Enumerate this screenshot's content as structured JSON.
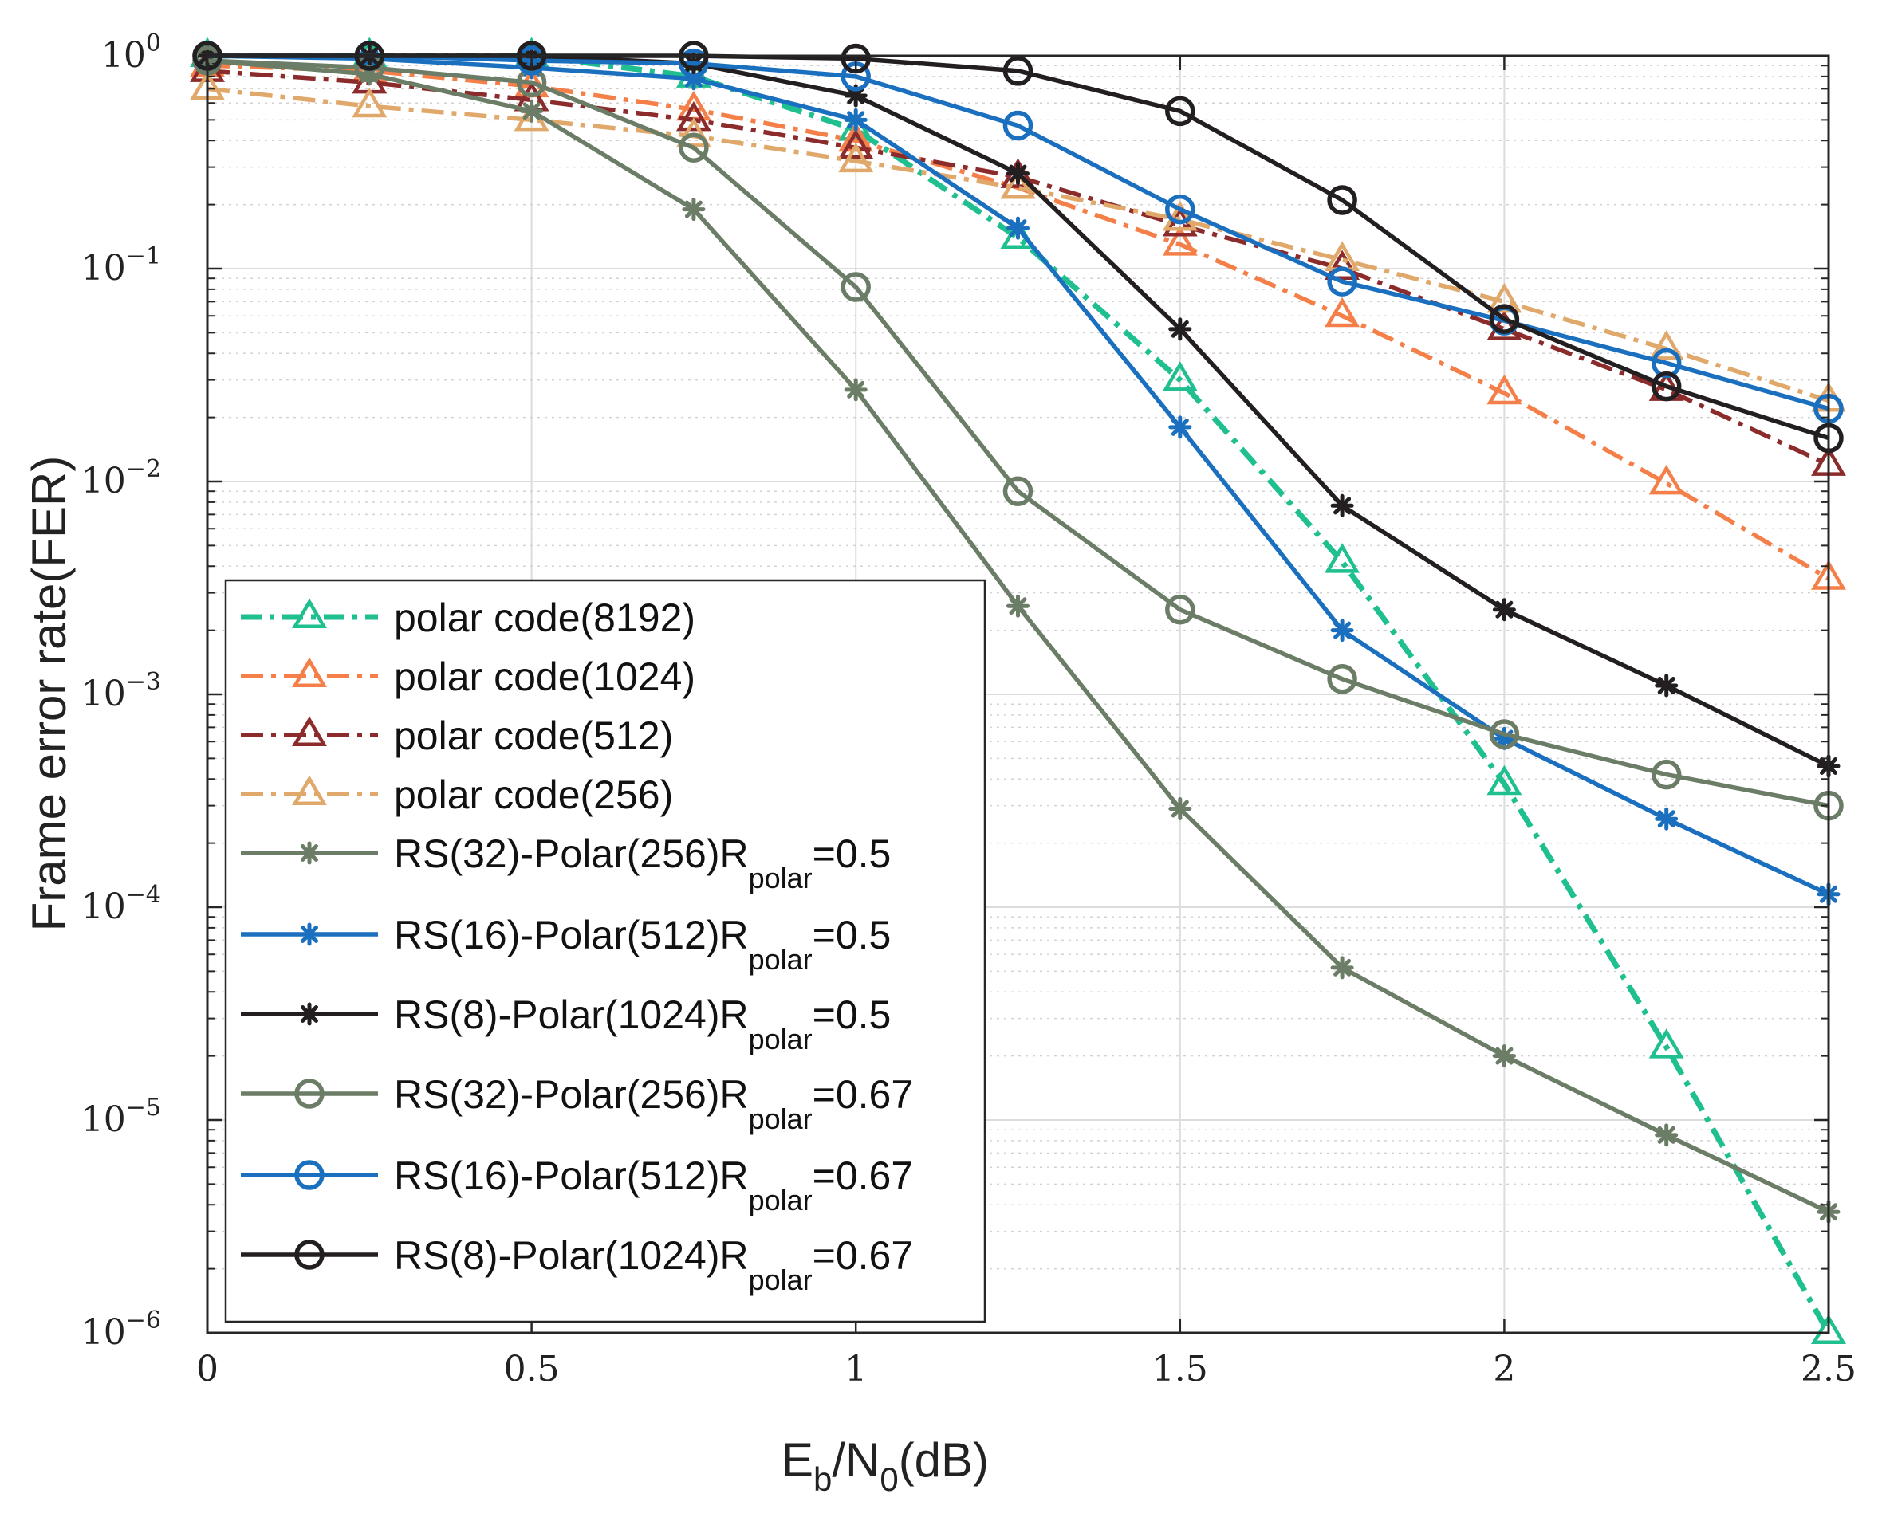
{
  "chart_data": {
    "type": "line",
    "x_scale": "linear",
    "y_scale": "log",
    "xlabel": {
      "main": "E",
      "sub1": "b",
      "mid": "/N",
      "sub2": "0",
      "tail": "(dB)"
    },
    "ylabel": "Frame error rate(FER)",
    "xlim": [
      0,
      2.5
    ],
    "ylim": [
      1e-06,
      1
    ],
    "xticks": [
      {
        "value": 0,
        "label": "0"
      },
      {
        "value": 0.5,
        "label": "0.5"
      },
      {
        "value": 1,
        "label": "1"
      },
      {
        "value": 1.5,
        "label": "1.5"
      },
      {
        "value": 2,
        "label": "2"
      },
      {
        "value": 2.5,
        "label": "2.5"
      }
    ],
    "yticks": [
      {
        "value": 1,
        "base": "10",
        "exp": "0"
      },
      {
        "value": 0.1,
        "base": "10",
        "exp": "−1"
      },
      {
        "value": 0.01,
        "base": "10",
        "exp": "−2"
      },
      {
        "value": 0.001,
        "base": "10",
        "exp": "−3"
      },
      {
        "value": 0.0001,
        "base": "10",
        "exp": "−4"
      },
      {
        "value": 1e-05,
        "base": "10",
        "exp": "−5"
      },
      {
        "value": 1e-06,
        "base": "10",
        "exp": "−6"
      }
    ],
    "grid": true,
    "legend_position": "bottom-left",
    "x": [
      0,
      0.25,
      0.5,
      0.75,
      1,
      1.25,
      1.5,
      1.75,
      2,
      2.25,
      2.5
    ],
    "series": [
      {
        "name": "polar code(8192)",
        "label_main": "polar code(8192)",
        "color": "#1fbf8f",
        "dash": "dashdot-green",
        "marker": "triangle",
        "values": [
          1.0,
          1.0,
          1.0,
          0.8,
          0.45,
          0.14,
          0.03,
          0.0042,
          0.00038,
          2.2e-05,
          1e-06
        ]
      },
      {
        "name": "polar code(1024)",
        "label_main": "polar code(1024)",
        "color": "#f47f48",
        "dash": "dashdot",
        "marker": "triangle",
        "values": [
          0.9,
          0.85,
          0.72,
          0.56,
          0.4,
          0.24,
          0.13,
          0.06,
          0.026,
          0.0098,
          0.0035
        ]
      },
      {
        "name": "polar code(512)",
        "label_main": "polar code(512)",
        "color": "#8b2b2b",
        "dash": "dashdot",
        "marker": "triangle",
        "values": [
          0.85,
          0.75,
          0.62,
          0.5,
          0.37,
          0.27,
          0.16,
          0.1,
          0.052,
          0.027,
          0.012
        ]
      },
      {
        "name": "polar code(256)",
        "label_main": "polar code(256)",
        "color": "#e0a86a",
        "dash": "dashdot",
        "marker": "triangle",
        "values": [
          0.7,
          0.58,
          0.5,
          0.42,
          0.32,
          0.24,
          0.17,
          0.11,
          0.07,
          0.042,
          0.024
        ]
      },
      {
        "name": "RS(32)-Polar(256)Rpolar=0.5",
        "label_main": "RS(32)-Polar(256)R",
        "label_sub": "polar",
        "label_tail": "=0.5",
        "color": "#6b7d66",
        "dash": "solid",
        "marker": "asterisk",
        "values": [
          0.95,
          0.82,
          0.55,
          0.19,
          0.027,
          0.0026,
          0.00029,
          5.2e-05,
          2e-05,
          8.5e-06,
          3.7e-06
        ]
      },
      {
        "name": "RS(16)-Polar(512)Rpolar=0.5",
        "label_main": "RS(16)-Polar(512)R",
        "label_sub": "polar",
        "label_tail": "=0.5",
        "color": "#1a6fbf",
        "dash": "solid",
        "marker": "asterisk",
        "values": [
          1.0,
          0.97,
          0.88,
          0.78,
          0.5,
          0.155,
          0.018,
          0.002,
          0.00062,
          0.00026,
          0.000115
        ]
      },
      {
        "name": "RS(8)-Polar(1024)Rpolar=0.5",
        "label_main": "RS(8)-Polar(1024)R",
        "label_sub": "polar",
        "label_tail": "=0.5",
        "color": "#231f20",
        "dash": "solid",
        "marker": "asterisk",
        "values": [
          1.0,
          1.0,
          1.0,
          0.92,
          0.65,
          0.28,
          0.052,
          0.0077,
          0.0025,
          0.0011,
          0.00046
        ]
      },
      {
        "name": "RS(32)-Polar(256)Rpolar=0.67",
        "label_main": "RS(32)-Polar(256)R",
        "label_sub": "polar",
        "label_tail": "=0.67",
        "color": "#6b7d66",
        "dash": "solid",
        "marker": "circle",
        "values": [
          0.95,
          0.88,
          0.75,
          0.37,
          0.082,
          0.009,
          0.0025,
          0.00118,
          0.00065,
          0.00042,
          0.0003
        ]
      },
      {
        "name": "RS(16)-Polar(512)Rpolar=0.67",
        "label_main": "RS(16)-Polar(512)R",
        "label_sub": "polar",
        "label_tail": "=0.67",
        "color": "#1a6fbf",
        "dash": "solid",
        "marker": "circle",
        "values": [
          1.0,
          1.0,
          0.95,
          0.92,
          0.8,
          0.47,
          0.19,
          0.087,
          0.057,
          0.036,
          0.022
        ]
      },
      {
        "name": "RS(8)-Polar(1024)Rpolar=0.67",
        "label_main": "RS(8)-Polar(1024)R",
        "label_sub": "polar",
        "label_tail": "=0.67",
        "color": "#231f20",
        "dash": "solid",
        "marker": "circle",
        "values": [
          1.0,
          1.0,
          1.0,
          1.0,
          0.97,
          0.85,
          0.55,
          0.21,
          0.058,
          0.028,
          0.016
        ]
      }
    ]
  }
}
